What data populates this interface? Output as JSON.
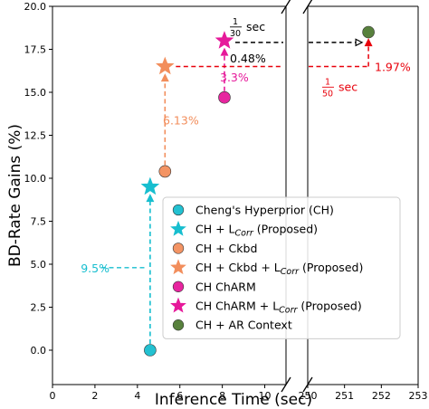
{
  "chart_data": {
    "type": "scatter",
    "title": "",
    "xlabel": "Inference Time (sec)",
    "ylabel": "BD-Rate Gains (%)",
    "ylim": [
      -2,
      20
    ],
    "x_segments": [
      {
        "range": [
          0,
          11
        ],
        "ticks": [
          "0",
          "2",
          "4",
          "6",
          "8",
          "10"
        ],
        "tick_values": [
          0,
          2,
          4,
          6,
          8,
          10
        ]
      },
      {
        "range": [
          250,
          253
        ],
        "ticks": [
          "250",
          "251",
          "252",
          "253"
        ],
        "tick_values": [
          250,
          251,
          252,
          253
        ]
      }
    ],
    "y_ticks": [
      "0.0",
      "2.5",
      "5.0",
      "7.5",
      "10.0",
      "12.5",
      "15.0",
      "17.5",
      "20.0"
    ],
    "y_tick_values": [
      0,
      2.5,
      5,
      7.5,
      10,
      12.5,
      15,
      17.5,
      20
    ],
    "legend_position": "lower-right",
    "series": [
      {
        "name": "Cheng's Hyperprior (CH)",
        "color": "#17becf",
        "marker": "circle",
        "points": [
          [
            4.6,
            0.0
          ]
        ]
      },
      {
        "name": "CH + L_Corr (Proposed)",
        "color": "#17becf",
        "marker": "star",
        "points": [
          [
            4.6,
            9.5
          ]
        ]
      },
      {
        "name": "CH + Ckbd",
        "color": "#f28e5c",
        "marker": "circle",
        "points": [
          [
            5.3,
            10.4
          ]
        ]
      },
      {
        "name": "CH + Ckbd + L_Corr (Proposed)",
        "color": "#f28e5c",
        "marker": "star",
        "points": [
          [
            5.3,
            16.5
          ]
        ]
      },
      {
        "name": "CH ChARM",
        "color": "#e6199a",
        "marker": "circle",
        "points": [
          [
            8.1,
            14.7
          ]
        ]
      },
      {
        "name": "CH ChARM + L_Corr (Proposed)",
        "color": "#e6199a",
        "marker": "star",
        "points": [
          [
            8.1,
            18.0
          ]
        ]
      },
      {
        "name": "CH + AR Context",
        "color": "#4f7a33",
        "marker": "circle",
        "points": [
          [
            251.65,
            18.5
          ]
        ]
      }
    ],
    "legend_labels": [
      {
        "pre": "Cheng's Hyperprior (CH)",
        "sub": "",
        "post": ""
      },
      {
        "pre": "CH + L",
        "sub": "Corr",
        "post": " (Proposed)"
      },
      {
        "pre": "CH + Ckbd",
        "sub": "",
        "post": ""
      },
      {
        "pre": "CH + Ckbd +  L",
        "sub": "Corr",
        "post": " (Proposed)"
      },
      {
        "pre": "CH ChARM",
        "sub": "",
        "post": ""
      },
      {
        "pre": "CH ChARM  +  L",
        "sub": "Corr",
        "post": " (Proposed)"
      },
      {
        "pre": "CH + AR Context",
        "sub": "",
        "post": ""
      }
    ],
    "annotations": [
      {
        "text": "9.5%",
        "color": "#17becf"
      },
      {
        "text": "6.13%",
        "color": "#f28e5c"
      },
      {
        "text": "3.3%",
        "color": "#e6199a"
      },
      {
        "text": "0.48%",
        "color": "#000000"
      },
      {
        "text": "1.97%",
        "color": "#e8000b"
      },
      {
        "frac_num": "1",
        "frac_den": "30",
        "text": "sec",
        "color": "#000000"
      },
      {
        "frac_num": "1",
        "frac_den": "50",
        "text": "sec",
        "color": "#e8000b"
      }
    ]
  }
}
